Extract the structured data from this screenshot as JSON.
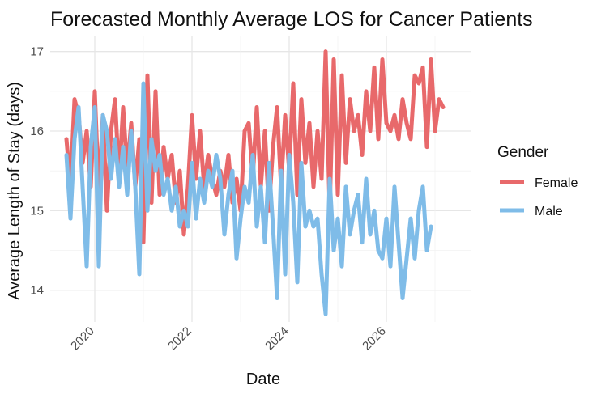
{
  "chart_data": {
    "type": "line",
    "title": "Forecasted Monthly Average LOS for Cancer Patients",
    "xlabel": "Date",
    "ylabel": "Average Length of Stay (days)",
    "x_ticks": [
      "2020",
      "2022",
      "2024",
      "2026"
    ],
    "y_ticks": [
      "14",
      "15",
      "16",
      "17"
    ],
    "xlim": [
      "2019-02-01",
      "2027-10-01"
    ],
    "ylim": [
      13.6,
      17.2
    ],
    "grid": true,
    "legend": {
      "title": "Gender",
      "position": "right"
    },
    "series": [
      {
        "name": "Female",
        "color": "#E8696B",
        "points": [
          [
            "2019-06",
            15.9
          ],
          [
            "2019-07",
            15.3
          ],
          [
            "2019-08",
            16.4
          ],
          [
            "2019-09",
            16.2
          ],
          [
            "2019-10",
            15.6
          ],
          [
            "2019-11",
            16.0
          ],
          [
            "2019-12",
            15.3
          ],
          [
            "2020-01",
            16.5
          ],
          [
            "2020-02",
            15.2
          ],
          [
            "2020-03",
            16.2
          ],
          [
            "2020-04",
            15.0
          ],
          [
            "2020-05",
            16.0
          ],
          [
            "2020-06",
            16.4
          ],
          [
            "2020-07",
            15.4
          ],
          [
            "2020-08",
            16.3
          ],
          [
            "2020-09",
            15.5
          ],
          [
            "2020-10",
            16.1
          ],
          [
            "2020-11",
            15.3
          ],
          [
            "2020-12",
            15.9
          ],
          [
            "2021-01",
            14.6
          ],
          [
            "2021-02",
            16.7
          ],
          [
            "2021-03",
            15.1
          ],
          [
            "2021-04",
            16.5
          ],
          [
            "2021-05",
            15.2
          ],
          [
            "2021-06",
            15.8
          ],
          [
            "2021-07",
            15.4
          ],
          [
            "2021-08",
            15.7
          ],
          [
            "2021-09",
            15.1
          ],
          [
            "2021-10",
            15.5
          ],
          [
            "2021-11",
            14.7
          ],
          [
            "2021-12",
            15.3
          ],
          [
            "2022-01",
            16.2
          ],
          [
            "2022-02",
            15.4
          ],
          [
            "2022-03",
            16.0
          ],
          [
            "2022-04",
            15.3
          ],
          [
            "2022-05",
            15.7
          ],
          [
            "2022-06",
            15.4
          ],
          [
            "2022-07",
            15.2
          ],
          [
            "2022-08",
            15.5
          ],
          [
            "2022-09",
            15.3
          ],
          [
            "2022-10",
            15.7
          ],
          [
            "2022-11",
            15.1
          ],
          [
            "2022-12",
            15.4
          ],
          [
            "2023-01",
            15.0
          ],
          [
            "2023-02",
            16.0
          ],
          [
            "2023-03",
            16.1
          ],
          [
            "2023-04",
            15.4
          ],
          [
            "2023-05",
            16.3
          ],
          [
            "2023-06",
            15.3
          ],
          [
            "2023-07",
            16.0
          ],
          [
            "2023-08",
            15.0
          ],
          [
            "2023-09",
            15.8
          ],
          [
            "2023-10",
            16.3
          ],
          [
            "2023-11",
            15.3
          ],
          [
            "2023-12",
            16.2
          ],
          [
            "2024-01",
            15.5
          ],
          [
            "2024-02",
            16.6
          ],
          [
            "2024-03",
            15.2
          ],
          [
            "2024-04",
            16.4
          ],
          [
            "2024-05",
            15.6
          ],
          [
            "2024-06",
            16.1
          ],
          [
            "2024-07",
            15.3
          ],
          [
            "2024-08",
            16.0
          ],
          [
            "2024-09",
            15.4
          ],
          [
            "2024-10",
            17.0
          ],
          [
            "2024-11",
            15.0
          ],
          [
            "2024-12",
            16.9
          ],
          [
            "2025-01",
            15.2
          ],
          [
            "2025-02",
            16.7
          ],
          [
            "2025-03",
            15.6
          ],
          [
            "2025-04",
            16.4
          ],
          [
            "2025-05",
            16.0
          ],
          [
            "2025-06",
            16.2
          ],
          [
            "2025-07",
            15.7
          ],
          [
            "2025-08",
            16.5
          ],
          [
            "2025-09",
            16.0
          ],
          [
            "2025-10",
            16.8
          ],
          [
            "2025-11",
            15.9
          ],
          [
            "2025-12",
            16.9
          ],
          [
            "2026-01",
            16.1
          ],
          [
            "2026-02",
            16.0
          ],
          [
            "2026-03",
            16.2
          ],
          [
            "2026-04",
            15.9
          ],
          [
            "2026-05",
            16.4
          ],
          [
            "2026-06",
            16.1
          ],
          [
            "2026-07",
            15.9
          ],
          [
            "2026-08",
            16.7
          ],
          [
            "2026-09",
            16.6
          ],
          [
            "2026-10",
            16.8
          ],
          [
            "2026-11",
            15.8
          ],
          [
            "2026-12",
            16.9
          ],
          [
            "2027-01",
            16.0
          ],
          [
            "2027-02",
            16.4
          ],
          [
            "2027-03",
            16.3
          ]
        ]
      },
      {
        "name": "Male",
        "color": "#7FBCE8",
        "points": [
          [
            "2019-06",
            15.7
          ],
          [
            "2019-07",
            14.9
          ],
          [
            "2019-08",
            15.9
          ],
          [
            "2019-09",
            16.3
          ],
          [
            "2019-10",
            15.3
          ],
          [
            "2019-11",
            14.3
          ],
          [
            "2019-12",
            15.8
          ],
          [
            "2020-01",
            16.3
          ],
          [
            "2020-02",
            14.3
          ],
          [
            "2020-03",
            16.2
          ],
          [
            "2020-04",
            16.0
          ],
          [
            "2020-05",
            15.4
          ],
          [
            "2020-06",
            15.9
          ],
          [
            "2020-07",
            15.3
          ],
          [
            "2020-08",
            15.8
          ],
          [
            "2020-09",
            15.2
          ],
          [
            "2020-10",
            16.0
          ],
          [
            "2020-11",
            15.3
          ],
          [
            "2020-12",
            14.2
          ],
          [
            "2021-01",
            16.6
          ],
          [
            "2021-02",
            15.0
          ],
          [
            "2021-03",
            15.9
          ],
          [
            "2021-04",
            15.5
          ],
          [
            "2021-05",
            15.7
          ],
          [
            "2021-06",
            15.2
          ],
          [
            "2021-07",
            15.4
          ],
          [
            "2021-08",
            15.0
          ],
          [
            "2021-09",
            15.3
          ],
          [
            "2021-10",
            14.8
          ],
          [
            "2021-11",
            15.0
          ],
          [
            "2021-12",
            14.8
          ],
          [
            "2022-01",
            15.6
          ],
          [
            "2022-02",
            14.9
          ],
          [
            "2022-03",
            15.4
          ],
          [
            "2022-04",
            15.1
          ],
          [
            "2022-05",
            15.5
          ],
          [
            "2022-06",
            15.3
          ],
          [
            "2022-07",
            15.7
          ],
          [
            "2022-08",
            15.4
          ],
          [
            "2022-09",
            14.7
          ],
          [
            "2022-10",
            15.2
          ],
          [
            "2022-11",
            15.5
          ],
          [
            "2022-12",
            14.4
          ],
          [
            "2023-01",
            14.9
          ],
          [
            "2023-02",
            15.3
          ],
          [
            "2023-03",
            15.1
          ],
          [
            "2023-04",
            15.7
          ],
          [
            "2023-05",
            14.8
          ],
          [
            "2023-06",
            15.3
          ],
          [
            "2023-07",
            14.6
          ],
          [
            "2023-08",
            15.6
          ],
          [
            "2023-09",
            14.8
          ],
          [
            "2023-10",
            13.9
          ],
          [
            "2023-11",
            15.5
          ],
          [
            "2023-12",
            14.2
          ],
          [
            "2024-01",
            15.7
          ],
          [
            "2024-02",
            15.1
          ],
          [
            "2024-03",
            14.1
          ],
          [
            "2024-04",
            15.6
          ],
          [
            "2024-05",
            14.8
          ],
          [
            "2024-06",
            15.0
          ],
          [
            "2024-07",
            14.8
          ],
          [
            "2024-08",
            14.9
          ],
          [
            "2024-09",
            14.2
          ],
          [
            "2024-10",
            13.7
          ],
          [
            "2024-11",
            15.4
          ],
          [
            "2024-12",
            14.5
          ],
          [
            "2025-01",
            14.9
          ],
          [
            "2025-02",
            14.3
          ],
          [
            "2025-03",
            15.3
          ],
          [
            "2025-04",
            14.7
          ],
          [
            "2025-05",
            15.0
          ],
          [
            "2025-06",
            15.2
          ],
          [
            "2025-07",
            14.6
          ],
          [
            "2025-08",
            15.4
          ],
          [
            "2025-09",
            14.7
          ],
          [
            "2025-10",
            15.0
          ],
          [
            "2025-11",
            14.5
          ],
          [
            "2025-12",
            14.4
          ],
          [
            "2026-01",
            14.9
          ],
          [
            "2026-02",
            14.3
          ],
          [
            "2026-03",
            15.3
          ],
          [
            "2026-04",
            14.6
          ],
          [
            "2026-05",
            13.9
          ],
          [
            "2026-06",
            14.4
          ],
          [
            "2026-07",
            14.9
          ],
          [
            "2026-08",
            14.4
          ],
          [
            "2026-09",
            15.0
          ],
          [
            "2026-10",
            15.3
          ],
          [
            "2026-11",
            14.5
          ],
          [
            "2026-12",
            14.8
          ]
        ]
      }
    ]
  }
}
